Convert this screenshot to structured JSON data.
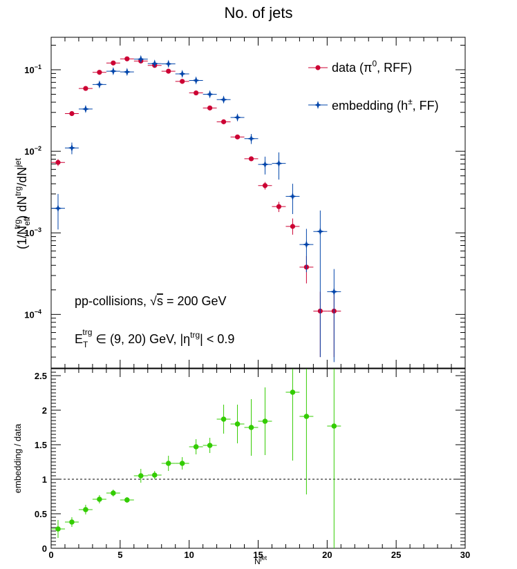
{
  "chart_data": [
    {
      "type": "scatter",
      "title": "No. of jets",
      "ylabel": {
        "pre": "(1/N",
        "sub1": "eff",
        "sup1": "trg",
        "mid": ") dN",
        "sup2": "trg",
        "mid2": "/dN",
        "sup3": "jet"
      },
      "yscale": "log",
      "ylim": [
        2.2e-05,
        0.25
      ],
      "xlim": [
        0,
        30
      ],
      "ytick_labels": [
        {
          "base": "10",
          "exp": "−1",
          "value": 0.1
        },
        {
          "base": "10",
          "exp": "−2",
          "value": 0.01
        },
        {
          "base": "10",
          "exp": "−3",
          "value": 0.001
        },
        {
          "base": "10",
          "exp": "−4",
          "value": 0.0001
        }
      ],
      "series": [
        {
          "name": "data (π0, RFF)",
          "legend": {
            "pre": "data (π",
            "sup": "0",
            "post": ", RFF)"
          },
          "color": "#cc0033",
          "marker": "circle",
          "points": [
            {
              "x": 0.5,
              "y": 0.0073,
              "ylo": 0.0066,
              "yhi": 0.008
            },
            {
              "x": 1.5,
              "y": 0.029,
              "ylo": 0.0275,
              "yhi": 0.0305
            },
            {
              "x": 2.5,
              "y": 0.059,
              "ylo": 0.057,
              "yhi": 0.061
            },
            {
              "x": 3.5,
              "y": 0.093,
              "ylo": 0.09,
              "yhi": 0.096
            },
            {
              "x": 4.5,
              "y": 0.121,
              "ylo": 0.118,
              "yhi": 0.124
            },
            {
              "x": 5.5,
              "y": 0.136,
              "ylo": 0.133,
              "yhi": 0.139
            },
            {
              "x": 6.5,
              "y": 0.128,
              "ylo": 0.125,
              "yhi": 0.131
            },
            {
              "x": 7.5,
              "y": 0.113,
              "ylo": 0.11,
              "yhi": 0.116
            },
            {
              "x": 8.5,
              "y": 0.096,
              "ylo": 0.093,
              "yhi": 0.099
            },
            {
              "x": 9.5,
              "y": 0.072,
              "ylo": 0.07,
              "yhi": 0.074
            },
            {
              "x": 10.5,
              "y": 0.052,
              "ylo": 0.0505,
              "yhi": 0.0535
            },
            {
              "x": 11.5,
              "y": 0.034,
              "ylo": 0.033,
              "yhi": 0.035
            },
            {
              "x": 12.5,
              "y": 0.023,
              "ylo": 0.0222,
              "yhi": 0.0238
            },
            {
              "x": 13.5,
              "y": 0.015,
              "ylo": 0.0144,
              "yhi": 0.0156
            },
            {
              "x": 14.5,
              "y": 0.0081,
              "ylo": 0.0077,
              "yhi": 0.0085
            },
            {
              "x": 15.5,
              "y": 0.0038,
              "ylo": 0.0034,
              "yhi": 0.0042
            },
            {
              "x": 16.5,
              "y": 0.0021,
              "ylo": 0.0018,
              "yhi": 0.0024
            },
            {
              "x": 17.5,
              "y": 0.0012,
              "ylo": 0.00095,
              "yhi": 0.0015
            },
            {
              "x": 18.5,
              "y": 0.00038,
              "ylo": 0.00024,
              "yhi": 0.00052
            },
            {
              "x": 19.5,
              "y": 0.00011,
              "ylo": 3e-05,
              "yhi": 0.00019
            },
            {
              "x": 20.5,
              "y": 0.00011,
              "ylo": 3e-05,
              "yhi": 0.00019
            }
          ]
        },
        {
          "name": "embedding (h±, FF)",
          "legend": {
            "pre": "embedding (h",
            "sup": "±",
            "post": ", FF)"
          },
          "color": "#0044aa",
          "marker": "star",
          "points": [
            {
              "x": 0.5,
              "y": 0.002,
              "ylo": 0.0011,
              "yhi": 0.003
            },
            {
              "x": 1.5,
              "y": 0.011,
              "ylo": 0.0092,
              "yhi": 0.0128
            },
            {
              "x": 2.5,
              "y": 0.033,
              "ylo": 0.031,
              "yhi": 0.035
            },
            {
              "x": 3.5,
              "y": 0.066,
              "ylo": 0.063,
              "yhi": 0.069
            },
            {
              "x": 4.5,
              "y": 0.096,
              "ylo": 0.093,
              "yhi": 0.099
            },
            {
              "x": 5.5,
              "y": 0.094,
              "ylo": 0.091,
              "yhi": 0.097
            },
            {
              "x": 6.5,
              "y": 0.135,
              "ylo": 0.131,
              "yhi": 0.139
            },
            {
              "x": 7.5,
              "y": 0.119,
              "ylo": 0.115,
              "yhi": 0.123
            },
            {
              "x": 8.5,
              "y": 0.118,
              "ylo": 0.114,
              "yhi": 0.122
            },
            {
              "x": 9.5,
              "y": 0.089,
              "ylo": 0.086,
              "yhi": 0.092
            },
            {
              "x": 10.5,
              "y": 0.074,
              "ylo": 0.071,
              "yhi": 0.077
            },
            {
              "x": 11.5,
              "y": 0.05,
              "ylo": 0.048,
              "yhi": 0.052
            },
            {
              "x": 12.5,
              "y": 0.043,
              "ylo": 0.041,
              "yhi": 0.045
            },
            {
              "x": 13.5,
              "y": 0.026,
              "ylo": 0.0235,
              "yhi": 0.0285
            },
            {
              "x": 14.5,
              "y": 0.0143,
              "ylo": 0.0123,
              "yhi": 0.0163
            },
            {
              "x": 15.5,
              "y": 0.0069,
              "ylo": 0.0052,
              "yhi": 0.0086
            },
            {
              "x": 16.5,
              "y": 0.0071,
              "ylo": 0.0045,
              "yhi": 0.0097
            },
            {
              "x": 17.5,
              "y": 0.0028,
              "ylo": 0.0017,
              "yhi": 0.004
            },
            {
              "x": 18.5,
              "y": 0.00072,
              "ylo": 0.00033,
              "yhi": 0.00112
            },
            {
              "x": 19.5,
              "y": 0.00104,
              "ylo": 3e-05,
              "yhi": 0.00188
            },
            {
              "x": 20.5,
              "y": 0.00019,
              "ylo": 2.6e-05,
              "yhi": 0.00036
            }
          ]
        }
      ],
      "annotations": [
        {
          "pre": "pp-collisions, ",
          "root": "√",
          "over": "s",
          "post": " = 200 GeV"
        },
        {
          "e": "E",
          "sub": "T",
          "sup1": "trg",
          "mid": " ∈ (9, 20) GeV, |η",
          "sup2": "trg",
          "post": "| < 0.9"
        }
      ]
    },
    {
      "type": "scatter",
      "xlabel": {
        "base": "N",
        "sup": "jet"
      },
      "ylabel": "embedding / data",
      "xlim": [
        0,
        30
      ],
      "ylim": [
        0,
        2.6
      ],
      "xticks": [
        0,
        5,
        10,
        15,
        20,
        25,
        30
      ],
      "xtick_labels": [
        "0",
        "5",
        "10",
        "15",
        "20",
        "25",
        "30"
      ],
      "yticks": [
        0,
        0.5,
        1,
        1.5,
        2,
        2.5
      ],
      "ytick_labels": [
        "0",
        "0.5",
        "1",
        "1.5",
        "2",
        "2.5"
      ],
      "reference_line": 1,
      "series": [
        {
          "color": "#33cc00",
          "marker": "circle",
          "points": [
            {
              "x": 0.5,
              "y": 0.28,
              "ylo": 0.15,
              "yhi": 0.41
            },
            {
              "x": 1.5,
              "y": 0.38,
              "ylo": 0.31,
              "yhi": 0.45
            },
            {
              "x": 2.5,
              "y": 0.56,
              "ylo": 0.49,
              "yhi": 0.63
            },
            {
              "x": 3.5,
              "y": 0.71,
              "ylo": 0.65,
              "yhi": 0.77
            },
            {
              "x": 4.5,
              "y": 0.8,
              "ylo": 0.75,
              "yhi": 0.85
            },
            {
              "x": 5.5,
              "y": 0.7,
              "ylo": 0.66,
              "yhi": 0.74
            },
            {
              "x": 6.5,
              "y": 1.05,
              "ylo": 0.95,
              "yhi": 1.15
            },
            {
              "x": 7.5,
              "y": 1.06,
              "ylo": 1.0,
              "yhi": 1.12
            },
            {
              "x": 8.5,
              "y": 1.23,
              "ylo": 1.12,
              "yhi": 1.34
            },
            {
              "x": 9.5,
              "y": 1.23,
              "ylo": 1.14,
              "yhi": 1.32
            },
            {
              "x": 10.5,
              "y": 1.47,
              "ylo": 1.36,
              "yhi": 1.58
            },
            {
              "x": 11.5,
              "y": 1.49,
              "ylo": 1.38,
              "yhi": 1.6
            },
            {
              "x": 12.5,
              "y": 1.87,
              "ylo": 1.66,
              "yhi": 2.08
            },
            {
              "x": 13.5,
              "y": 1.8,
              "ylo": 1.52,
              "yhi": 2.08
            },
            {
              "x": 14.5,
              "y": 1.75,
              "ylo": 1.34,
              "yhi": 2.16
            },
            {
              "x": 15.5,
              "y": 1.84,
              "ylo": 1.35,
              "yhi": 2.33
            },
            {
              "x": 17.5,
              "y": 2.26,
              "ylo": 1.27,
              "yhi": 2.6
            },
            {
              "x": 18.5,
              "y": 1.91,
              "ylo": 0.78,
              "yhi": 2.6
            },
            {
              "x": 20.5,
              "y": 1.77,
              "ylo": 0.0,
              "yhi": 2.6
            }
          ]
        }
      ]
    }
  ]
}
